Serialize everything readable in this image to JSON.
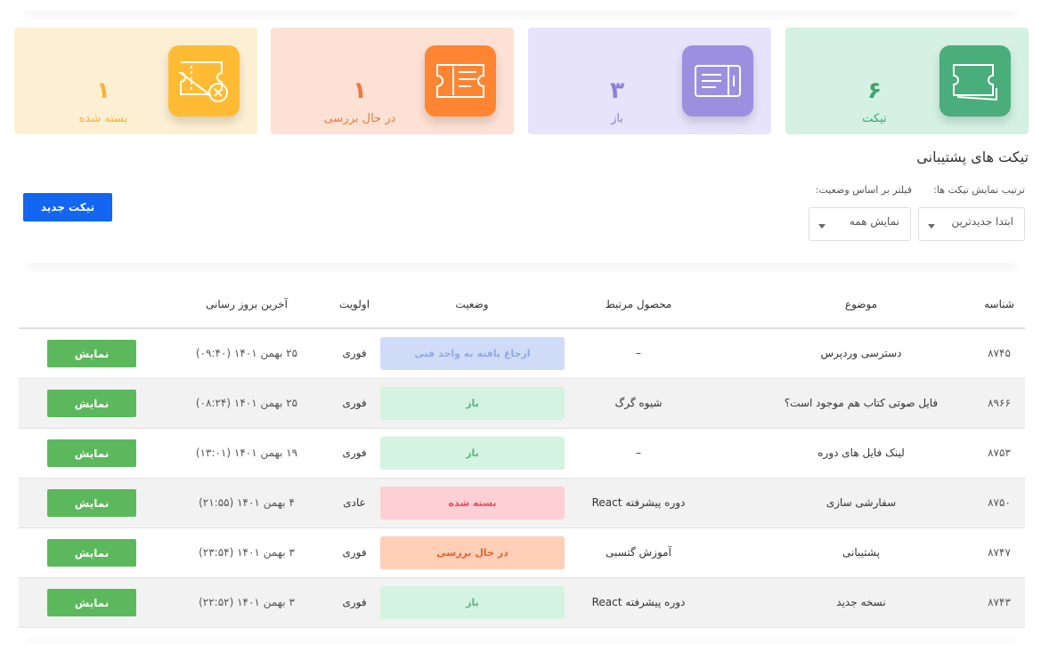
{
  "cards": [
    {
      "count": "۶",
      "label": "تیکت"
    },
    {
      "count": "۳",
      "label": "باز"
    },
    {
      "count": "۱",
      "label": "در حال بررسی"
    },
    {
      "count": "۱",
      "label": "بسته شده"
    }
  ],
  "title": "تیکت های پشتیبانی",
  "sort_label": "ترتیب نمایش تیکت ها:",
  "filter_label": "فیلتر بر اساس وضعیت:",
  "sort_select": "ابتدا جدیدترین",
  "filter_select": "نمایش همه",
  "new_button": "تیکت جدید",
  "table": {
    "headers": [
      "شناسه",
      "موضوع",
      "محصول مرتبط",
      "وضعیت",
      "اولویت",
      "آخرین بروز رسانی"
    ],
    "rows": [
      {
        "id": "۸۷۴۵",
        "subject": "دسترسی وردپرس",
        "product": "–",
        "status": "ارجاع یافته به واحد فنی",
        "status_color": "#8fa9e6",
        "status_background": "#d0dcf7",
        "priority": "فوری",
        "updated": "۲۵ بهمن ۱۴۰۱ (۰۹:۴۰)",
        "action": "نمایش"
      },
      {
        "id": "۸۹۶۶",
        "subject": "فایل صوتی کتاب هم موجود است؟",
        "product": "شیوه گرگ",
        "status": "باز",
        "status_color": "#5ab57f",
        "status_background": "#d4f3e1",
        "priority": "فوری",
        "updated": "۲۵ بهمن ۱۴۰۱ (۰۸:۲۴)",
        "action": "نمایش"
      },
      {
        "id": "۸۷۵۳",
        "subject": "لینک فایل های دوره",
        "product": "–",
        "status": "باز",
        "status_color": "#5ab57f",
        "status_background": "#d4f3e1",
        "priority": "فوری",
        "updated": "۱۹ بهمن ۱۴۰۱ (۱۳:۰۱)",
        "action": "نمایش"
      },
      {
        "id": "۸۷۵۰",
        "subject": "سفارشی سازی",
        "product": "دوره پیشرفته React",
        "status": "بسته شده",
        "status_color": "#e84c5a",
        "status_background": "#fdd0d5",
        "priority": "عادی",
        "updated": "۴ بهمن ۱۴۰۱ (۲۱:۵۵)",
        "action": "نمایش"
      },
      {
        "id": "۸۷۴۷",
        "subject": "پشتیبانی",
        "product": "آموزش گتسبی",
        "status": "در حال بررسی",
        "status_color": "#e8622b",
        "status_background": "#ffcfb8",
        "priority": "فوری",
        "updated": "۳ بهمن ۱۴۰۱ (۲۳:۵۴)",
        "action": "نمایش"
      },
      {
        "id": "۸۷۴۳",
        "subject": "نسخه جدید",
        "product": "دوره پیشرفته React",
        "status": "باز",
        "status_color": "#5ab57f",
        "status_background": "#d4f3e1",
        "priority": "فوری",
        "updated": "۳ بهمن ۱۴۰۱ (۲۲:۵۲)",
        "action": "نمایش"
      }
    ]
  }
}
